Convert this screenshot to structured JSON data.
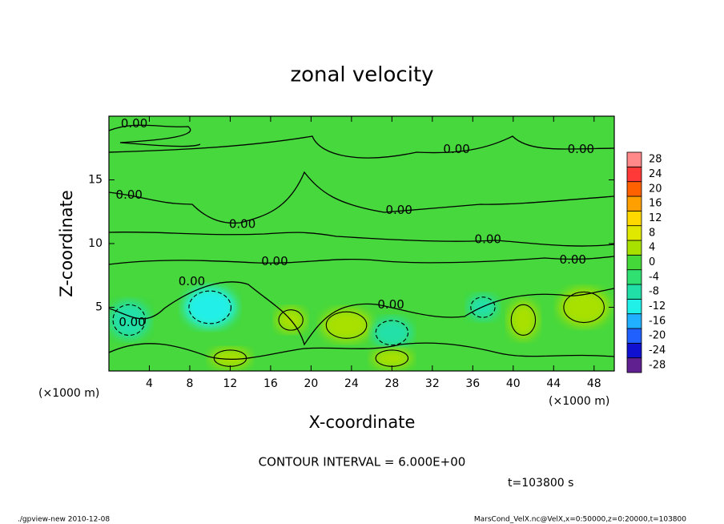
{
  "chart_data": {
    "type": "contour",
    "title": "zonal velocity",
    "x_label": "X-coordinate",
    "y_label": "Z-coordinate",
    "x_unit": "(×1000 m)",
    "xlim": [
      0,
      50
    ],
    "ylim": [
      0,
      20
    ],
    "xticks": [
      4,
      8,
      12,
      16,
      20,
      24,
      28,
      32,
      36,
      40,
      44,
      48
    ],
    "yticks": [
      5,
      10,
      15
    ],
    "colorbar": {
      "levels": [
        -28,
        -24,
        -20,
        -16,
        -12,
        -8,
        -4,
        0,
        4,
        8,
        12,
        16,
        20,
        24,
        28
      ],
      "colors": [
        "#602090",
        "#1010d0",
        "#2060ff",
        "#20b0ff",
        "#20f0e8",
        "#20e0a8",
        "#30e070",
        "#44d838",
        "#a8e000",
        "#e0e800",
        "#ffd800",
        "#ffa000",
        "#ff6000",
        "#ff3838",
        "#ff8888"
      ]
    },
    "field": [
      {
        "x": 10,
        "z": 5,
        "rx": 2.6,
        "rz": 1.6,
        "value": -12
      },
      {
        "x": 2,
        "z": 4,
        "rx": 2,
        "rz": 1.5,
        "value": -8
      },
      {
        "x": 23.5,
        "z": 3.6,
        "rx": 2.5,
        "rz": 1.3,
        "value": 4
      },
      {
        "x": 28,
        "z": 3,
        "rx": 2,
        "rz": 1.2,
        "value": -8
      },
      {
        "x": 47,
        "z": 5,
        "rx": 2.5,
        "rz": 1.5,
        "value": 4
      },
      {
        "x": 12,
        "z": 1,
        "rx": 2,
        "rz": 0.8,
        "value": 4
      },
      {
        "x": 18,
        "z": 4,
        "rx": 1.5,
        "rz": 1,
        "value": 4
      },
      {
        "x": 37,
        "z": 5,
        "rx": 1.5,
        "rz": 1,
        "value": -8
      },
      {
        "x": 41,
        "z": 4,
        "rx": 1.5,
        "rz": 1.5,
        "value": 4
      },
      {
        "x": 28,
        "z": 1,
        "rx": 2,
        "rz": 0.8,
        "value": 4
      }
    ],
    "contour_labels": [
      {
        "value": 0,
        "label": "0.00",
        "x": 2.5,
        "z": 19.4
      },
      {
        "value": 0,
        "label": "0.00",
        "x": 34.4,
        "z": 17.4
      },
      {
        "value": 0,
        "label": "0.00",
        "x": 46.7,
        "z": 17.4
      },
      {
        "value": 0,
        "label": "0.00",
        "x": 2,
        "z": 13.8
      },
      {
        "value": 0,
        "label": "0.00",
        "x": 13.2,
        "z": 11.5
      },
      {
        "value": 0,
        "label": "0.00",
        "x": 28.7,
        "z": 12.6
      },
      {
        "value": 0,
        "label": "0.00",
        "x": 37.5,
        "z": 10.3
      },
      {
        "value": 0,
        "label": "0.00",
        "x": 45.9,
        "z": 8.7
      },
      {
        "value": 0,
        "label": "0.00",
        "x": 16.4,
        "z": 8.6
      },
      {
        "value": 0,
        "label": "0.00",
        "x": 8.2,
        "z": 7
      },
      {
        "value": 0,
        "label": "0.00",
        "x": 27.9,
        "z": 5.2
      },
      {
        "value": 0,
        "label": "0.00",
        "x": 2.3,
        "z": 3.8
      }
    ],
    "contour_interval": "CONTOUR INTERVAL = 6.000E+00",
    "time_label": "t=103800 s",
    "footer_left": "./gpview-new  2010-12-08",
    "footer_right": "MarsCond_VelX.nc@VelX,x=0:50000,z=0:20000,t=103800"
  }
}
